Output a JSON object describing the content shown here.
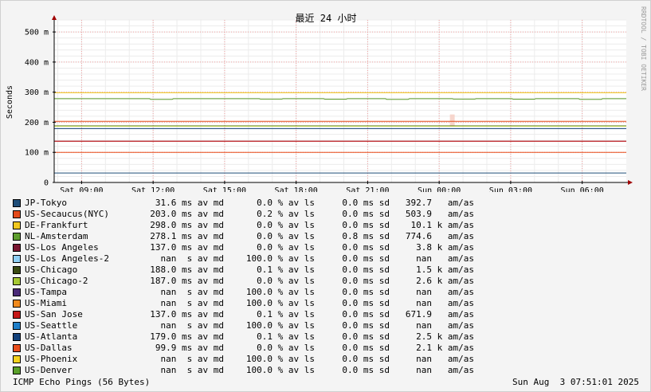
{
  "chart_data": {
    "type": "line",
    "title": "最近 24 小时",
    "ylabel": "Seconds",
    "watermark": "RRDTOOL / TOBI OETIKER",
    "ylim": [
      0,
      540
    ],
    "yticks": [
      {
        "value": 0,
        "label": "0"
      },
      {
        "value": 100,
        "label": "100 m"
      },
      {
        "value": 200,
        "label": "200 m"
      },
      {
        "value": 300,
        "label": "300 m"
      },
      {
        "value": 400,
        "label": "400 m"
      },
      {
        "value": 500,
        "label": "500 m"
      }
    ],
    "xticks": [
      "Sat 09:00",
      "Sat 12:00",
      "Sat 15:00",
      "Sat 18:00",
      "Sat 21:00",
      "Sun 00:00",
      "Sun 03:00",
      "Sun 06:00"
    ],
    "xlim": [
      7.85,
      31.85
    ],
    "xtick_hours": [
      9,
      12,
      15,
      18,
      21,
      24,
      27,
      30
    ],
    "grid": true,
    "series": [
      {
        "name": "JP-Tokyo",
        "color": "#1f4e79",
        "value": 31.6
      },
      {
        "name": "US-Secaucus(NYC)",
        "color": "#e34a1a",
        "value": 203.0
      },
      {
        "name": "DE-Frankfurt",
        "color": "#f2c81e",
        "value": 298.0
      },
      {
        "name": "NL-Amsterdam",
        "color": "#5e9e2e",
        "value": 278.1,
        "dips": [
          [
            11.9,
            276
          ],
          [
            16.5,
            277
          ],
          [
            19.2,
            276.5
          ],
          [
            21.8,
            276
          ],
          [
            24.6,
            277
          ],
          [
            27.1,
            276.5
          ],
          [
            29.9,
            276
          ]
        ]
      },
      {
        "name": "US-Los Angeles",
        "color": "#7a1530",
        "value": 137.0
      },
      {
        "name": "US-Los Angeles-2",
        "color": "#8fcff5",
        "value": null
      },
      {
        "name": "US-Chicago",
        "color": "#3a4a12",
        "value": 188.0
      },
      {
        "name": "US-Chicago-2",
        "color": "#a6c834",
        "value": 187.0
      },
      {
        "name": "US-Tampa",
        "color": "#4a2a78",
        "value": null
      },
      {
        "name": "US-Miami",
        "color": "#f08a1e",
        "value": null
      },
      {
        "name": "US-San Jose",
        "color": "#c41818",
        "value": 137.0
      },
      {
        "name": "US-Seattle",
        "color": "#1e7ec8",
        "value": null
      },
      {
        "name": "US-Atlanta",
        "color": "#12407a",
        "value": 179.0
      },
      {
        "name": "US-Dallas",
        "color": "#ea4e1c",
        "value": 99.9
      },
      {
        "name": "US-Phoenix",
        "color": "#f4d21e",
        "value": null
      },
      {
        "name": "US-Denver",
        "color": "#5aa02a",
        "value": null
      }
    ],
    "legend_rows": [
      {
        "name": "JP-Tokyo",
        "avg": "31.6 ms av md",
        "loss": "0.0 % av ls",
        "sd": "0.0 ms sd",
        "amas": "392.7   am/as"
      },
      {
        "name": "US-Secaucus(NYC)",
        "avg": "203.0 ms av md",
        "loss": "0.2 % av ls",
        "sd": "0.0 ms sd",
        "amas": "503.9   am/as"
      },
      {
        "name": "DE-Frankfurt",
        "avg": "298.0 ms av md",
        "loss": "0.0 % av ls",
        "sd": "0.0 ms sd",
        "amas": "10.1 k am/as"
      },
      {
        "name": "NL-Amsterdam",
        "avg": "278.1 ms av md",
        "loss": "0.0 % av ls",
        "sd": "0.8 ms sd",
        "amas": "774.6   am/as"
      },
      {
        "name": "US-Los Angeles",
        "avg": "137.0 ms av md",
        "loss": "0.0 % av ls",
        "sd": "0.0 ms sd",
        "amas": "3.8 k am/as"
      },
      {
        "name": "US-Los Angeles-2",
        "avg": "nan  s av md",
        "loss": "100.0 % av ls",
        "sd": "0.0 ms sd",
        "amas": "nan   am/as"
      },
      {
        "name": "US-Chicago",
        "avg": "188.0 ms av md",
        "loss": "0.1 % av ls",
        "sd": "0.0 ms sd",
        "amas": "1.5 k am/as"
      },
      {
        "name": "US-Chicago-2",
        "avg": "187.0 ms av md",
        "loss": "0.0 % av ls",
        "sd": "0.0 ms sd",
        "amas": "2.6 k am/as"
      },
      {
        "name": "US-Tampa",
        "avg": "nan  s av md",
        "loss": "100.0 % av ls",
        "sd": "0.0 ms sd",
        "amas": "nan   am/as"
      },
      {
        "name": "US-Miami",
        "avg": "nan  s av md",
        "loss": "100.0 % av ls",
        "sd": "0.0 ms sd",
        "amas": "nan   am/as"
      },
      {
        "name": "US-San Jose",
        "avg": "137.0 ms av md",
        "loss": "0.1 % av ls",
        "sd": "0.0 ms sd",
        "amas": "671.9   am/as"
      },
      {
        "name": "US-Seattle",
        "avg": "nan  s av md",
        "loss": "100.0 % av ls",
        "sd": "0.0 ms sd",
        "amas": "nan   am/as"
      },
      {
        "name": "US-Atlanta",
        "avg": "179.0 ms av md",
        "loss": "0.1 % av ls",
        "sd": "0.0 ms sd",
        "amas": "2.5 k am/as"
      },
      {
        "name": "US-Dallas",
        "avg": "99.9 ms av md",
        "loss": "0.0 % av ls",
        "sd": "0.0 ms sd",
        "amas": "2.1 k am/as"
      },
      {
        "name": "US-Phoenix",
        "avg": "nan  s av md",
        "loss": "100.0 % av ls",
        "sd": "0.0 ms sd",
        "amas": "nan   am/as"
      },
      {
        "name": "US-Denver",
        "avg": "nan  s av md",
        "loss": "100.0 % av ls",
        "sd": "0.0 ms sd",
        "amas": "nan   am/as"
      }
    ]
  },
  "footer": {
    "left": "ICMP Echo Pings (56 Bytes)",
    "right": "Sun Aug  3 07:51:01 2025"
  }
}
